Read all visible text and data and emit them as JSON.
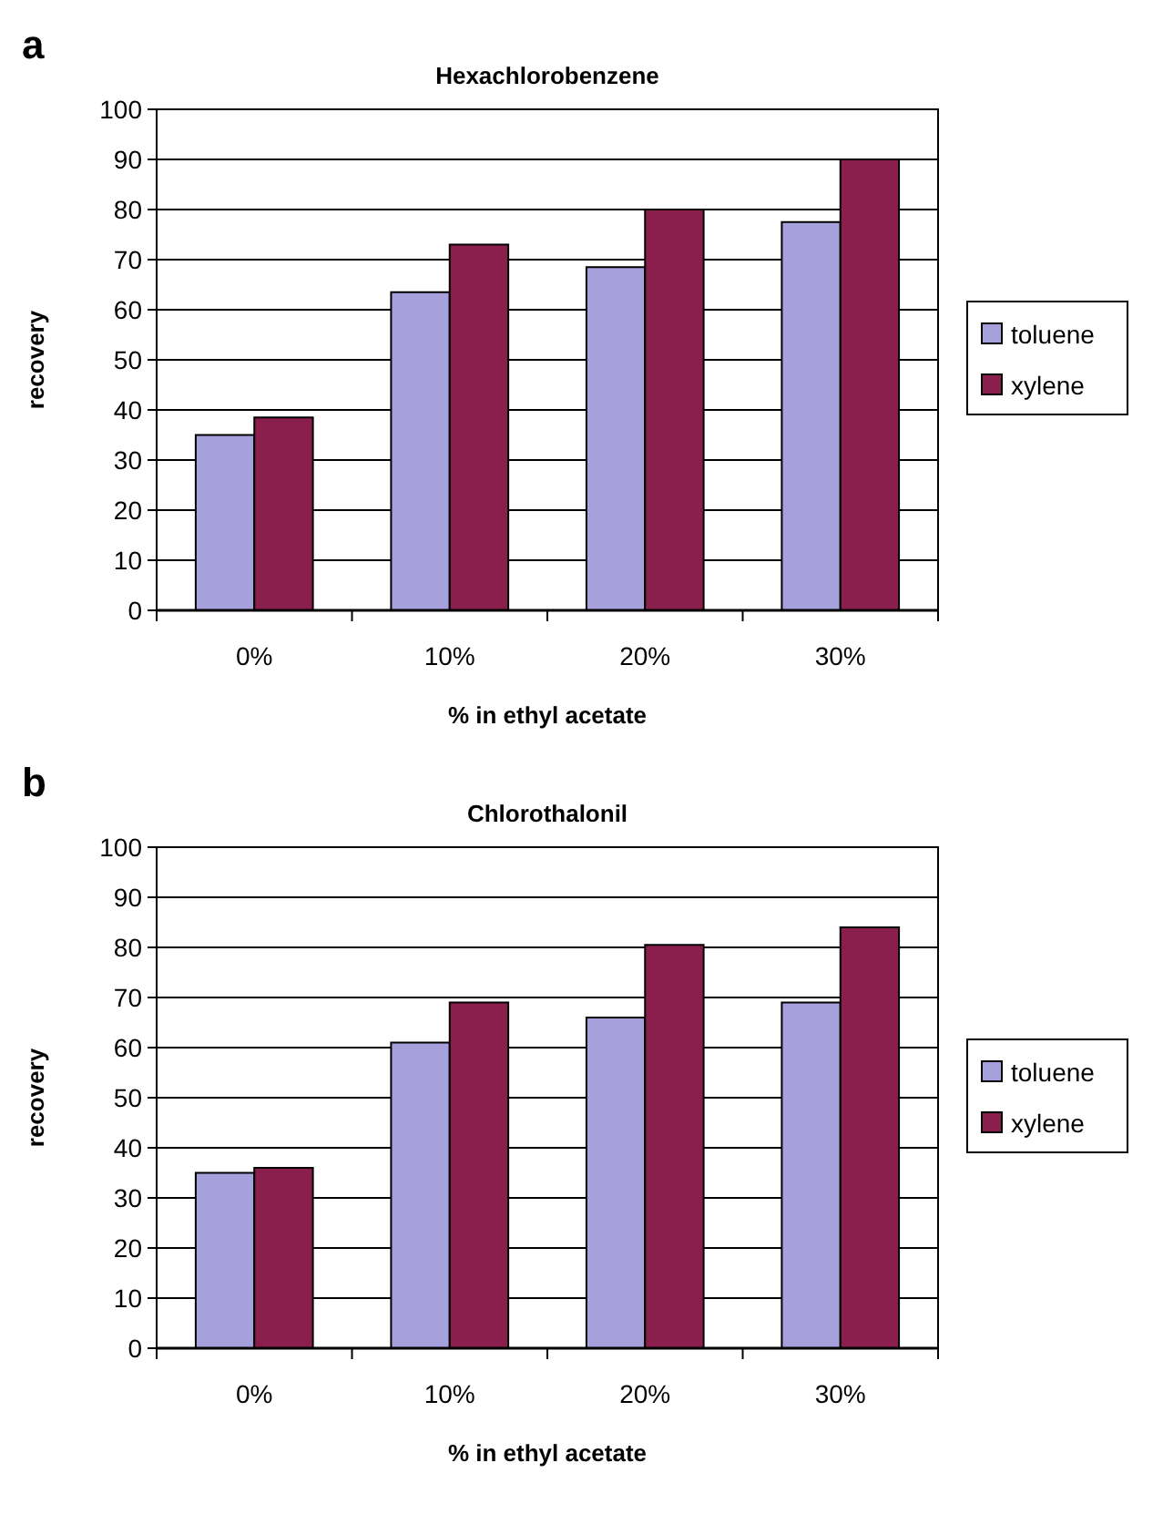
{
  "chart_data": [
    {
      "type": "bar",
      "title": "Hexachlorobenzene",
      "xlabel": "% in ethyl acetate",
      "ylabel": "recovery",
      "annotations": [
        "a"
      ],
      "categories": [
        "0%",
        "10%",
        "20%",
        "30%"
      ],
      "series": [
        {
          "name": "toluene",
          "color": "#a6a0dc",
          "values": [
            35,
            63.5,
            68.5,
            77.5
          ]
        },
        {
          "name": "xylene",
          "color": "#8a1f4e",
          "values": [
            38.5,
            73,
            80,
            90
          ]
        }
      ],
      "ylim": [
        0,
        100
      ],
      "yticks": [
        0,
        10,
        20,
        30,
        40,
        50,
        60,
        70,
        80,
        90,
        100
      ],
      "grid": "y",
      "legend": "right"
    },
    {
      "type": "bar",
      "title": "Chlorothalonil",
      "xlabel": "% in ethyl acetate",
      "ylabel": "recovery",
      "annotations": [
        "b"
      ],
      "categories": [
        "0%",
        "10%",
        "20%",
        "30%"
      ],
      "series": [
        {
          "name": "toluene",
          "color": "#a6a0dc",
          "values": [
            35,
            61,
            66,
            69
          ]
        },
        {
          "name": "xylene",
          "color": "#8a1f4e",
          "values": [
            36,
            69,
            80.5,
            84
          ]
        }
      ],
      "ylim": [
        0,
        100
      ],
      "yticks": [
        0,
        10,
        20,
        30,
        40,
        50,
        60,
        70,
        80,
        90,
        100
      ],
      "grid": "y",
      "legend": "right"
    }
  ]
}
